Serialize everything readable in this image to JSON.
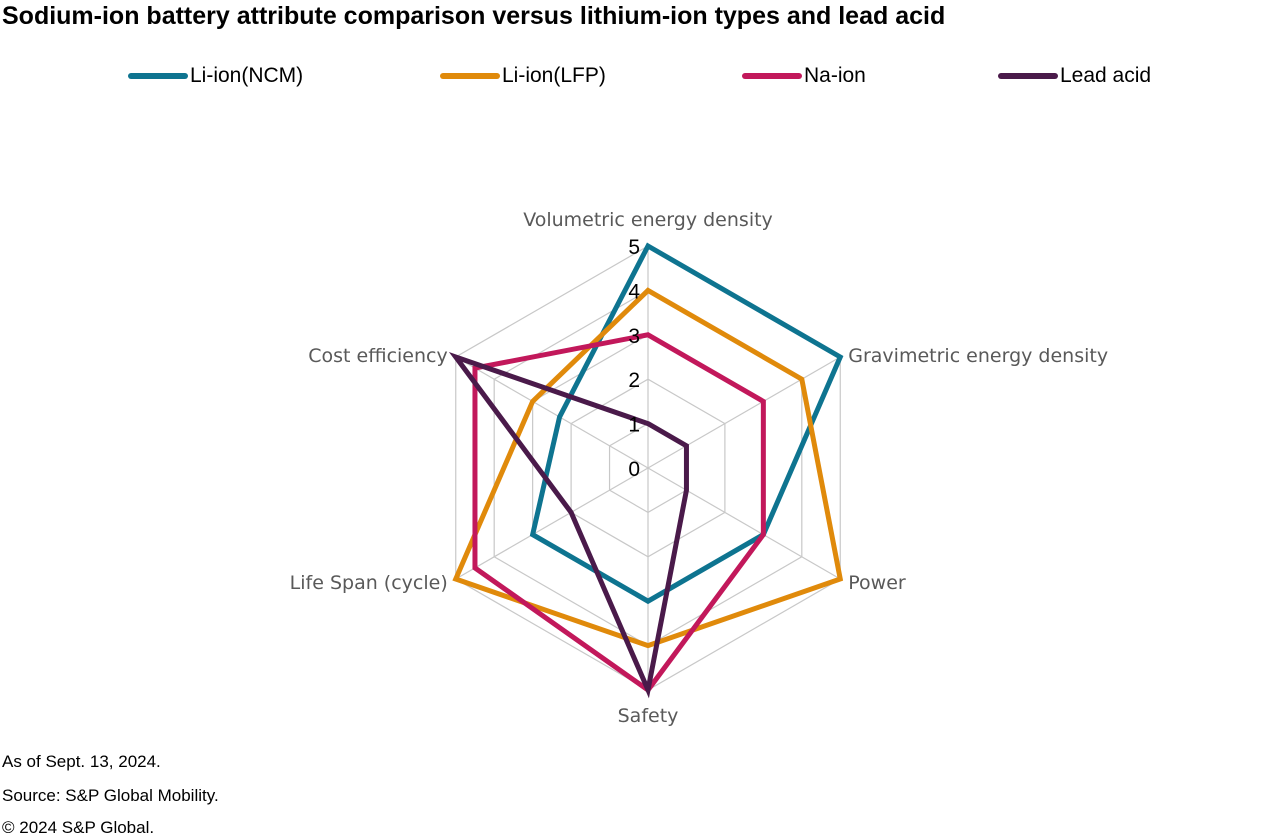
{
  "title": "Sodium-ion battery attribute comparison versus lithium-ion types and lead acid",
  "footer": {
    "as_of": "As of Sept. 13, 2024.",
    "source": "Source: S&P Global Mobility.",
    "copyright": "© 2024 S&P Global."
  },
  "chart_data": {
    "type": "radar",
    "title": "Sodium-ion battery attribute comparison versus lithium-ion types and lead acid",
    "axes": [
      "Volumetric energy density",
      "Gravimetric energy density",
      "Power",
      "Safety",
      "Life Span (cycle)",
      "Cost efficiency"
    ],
    "rlim": [
      0,
      5
    ],
    "ticks": [
      0,
      1,
      2,
      3,
      4,
      5
    ],
    "legend_position": "top",
    "series": [
      {
        "name": "Li-ion(NCM)",
        "color": "#0e7490",
        "values": [
          5,
          5,
          3,
          3,
          3,
          2.3
        ]
      },
      {
        "name": "Li-ion(LFP)",
        "color": "#e08a0b",
        "values": [
          4,
          4,
          5,
          4,
          5,
          3
        ]
      },
      {
        "name": "Na-ion",
        "color": "#c2185b",
        "values": [
          3,
          3,
          3,
          5,
          4.5,
          4.5
        ]
      },
      {
        "name": "Lead acid",
        "color": "#4a1a4a",
        "values": [
          1,
          1,
          1,
          5,
          2,
          5
        ]
      }
    ]
  }
}
